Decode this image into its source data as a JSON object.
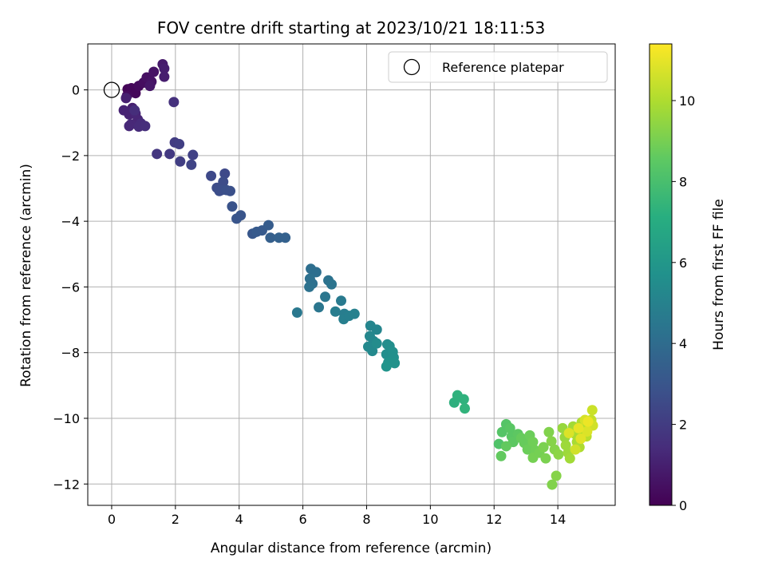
{
  "chart_data": {
    "type": "scatter",
    "title": "FOV centre drift starting at 2023/10/21 18:11:53",
    "xlabel": "Angular distance from reference (arcmin)",
    "ylabel": "Rotation from reference (arcmin)",
    "xlim": [
      -0.75,
      15.8
    ],
    "ylim": [
      -12.65,
      1.4
    ],
    "xticks": [
      0,
      2,
      4,
      6,
      8,
      10,
      12,
      14
    ],
    "xtick_labels": [
      "0",
      "2",
      "4",
      "6",
      "8",
      "10",
      "12",
      "14"
    ],
    "yticks": [
      0,
      -2,
      -4,
      -6,
      -8,
      -10,
      -12
    ],
    "ytick_labels": [
      "0",
      "−2",
      "−4",
      "−6",
      "−8",
      "−10",
      "−12"
    ],
    "grid": true,
    "legend": {
      "placement": "top-right",
      "entries": [
        {
          "label": "Reference platepar",
          "marker": "open-circle",
          "color": "#000000"
        }
      ]
    },
    "reference_point": {
      "x": 0,
      "y": 0
    },
    "colorbar": {
      "label": "Hours from first FF file",
      "colormap": "viridis",
      "range": [
        0,
        11.4
      ],
      "ticks": [
        0,
        2,
        4,
        6,
        8,
        10
      ],
      "tick_labels": [
        "0",
        "2",
        "4",
        "6",
        "8",
        "10"
      ]
    },
    "series": [
      {
        "values": [
          {
            "x": 0.5,
            "y": 0.02,
            "h": 0.1
          },
          {
            "x": 0.62,
            "y": 0.05,
            "h": 0.2
          },
          {
            "x": 0.75,
            "y": -0.1,
            "h": 0.2
          },
          {
            "x": 0.48,
            "y": -0.18,
            "h": 0.3
          },
          {
            "x": 0.85,
            "y": 0.12,
            "h": 0.3
          },
          {
            "x": 1.0,
            "y": 0.22,
            "h": 0.4
          },
          {
            "x": 1.1,
            "y": 0.38,
            "h": 0.5
          },
          {
            "x": 1.25,
            "y": 0.25,
            "h": 0.6
          },
          {
            "x": 1.32,
            "y": 0.55,
            "h": 0.6
          },
          {
            "x": 1.2,
            "y": 0.12,
            "h": 0.7
          },
          {
            "x": 1.6,
            "y": 0.78,
            "h": 0.8
          },
          {
            "x": 1.65,
            "y": 0.65,
            "h": 0.9
          },
          {
            "x": 1.65,
            "y": 0.4,
            "h": 0.9
          },
          {
            "x": 0.45,
            "y": -0.25,
            "h": 1.0
          },
          {
            "x": 0.65,
            "y": -0.55,
            "h": 1.0
          },
          {
            "x": 0.38,
            "y": -0.62,
            "h": 1.1
          },
          {
            "x": 0.55,
            "y": -0.75,
            "h": 1.1
          },
          {
            "x": 0.75,
            "y": -0.72,
            "h": 1.2
          },
          {
            "x": 0.82,
            "y": -0.9,
            "h": 1.2
          },
          {
            "x": 0.6,
            "y": -1.05,
            "h": 1.3
          },
          {
            "x": 0.55,
            "y": -1.1,
            "h": 1.3
          },
          {
            "x": 0.92,
            "y": -1.02,
            "h": 1.4
          },
          {
            "x": 0.85,
            "y": -1.12,
            "h": 1.4
          },
          {
            "x": 1.05,
            "y": -1.1,
            "h": 1.5
          },
          {
            "x": 0.72,
            "y": -0.62,
            "h": 1.5
          },
          {
            "x": 1.95,
            "y": -0.37,
            "h": 1.6
          },
          {
            "x": 1.42,
            "y": -1.95,
            "h": 1.8
          },
          {
            "x": 1.82,
            "y": -1.95,
            "h": 1.9
          },
          {
            "x": 1.98,
            "y": -1.6,
            "h": 2.0
          },
          {
            "x": 2.12,
            "y": -1.65,
            "h": 2.1
          },
          {
            "x": 2.15,
            "y": -2.18,
            "h": 2.1
          },
          {
            "x": 2.55,
            "y": -1.98,
            "h": 2.2
          },
          {
            "x": 2.5,
            "y": -2.28,
            "h": 2.3
          },
          {
            "x": 3.12,
            "y": -2.62,
            "h": 2.5
          },
          {
            "x": 3.55,
            "y": -2.55,
            "h": 2.5
          },
          {
            "x": 3.5,
            "y": -2.8,
            "h": 2.6
          },
          {
            "x": 3.3,
            "y": -2.98,
            "h": 2.6
          },
          {
            "x": 3.45,
            "y": -3.05,
            "h": 2.7
          },
          {
            "x": 3.38,
            "y": -3.08,
            "h": 2.7
          },
          {
            "x": 3.6,
            "y": -3.05,
            "h": 2.8
          },
          {
            "x": 3.72,
            "y": -3.08,
            "h": 2.8
          },
          {
            "x": 3.78,
            "y": -3.55,
            "h": 2.9
          },
          {
            "x": 3.92,
            "y": -3.92,
            "h": 3.0
          },
          {
            "x": 4.05,
            "y": -3.82,
            "h": 3.0
          },
          {
            "x": 4.42,
            "y": -4.38,
            "h": 3.1
          },
          {
            "x": 4.55,
            "y": -4.32,
            "h": 3.2
          },
          {
            "x": 4.72,
            "y": -4.28,
            "h": 3.2
          },
          {
            "x": 4.92,
            "y": -4.12,
            "h": 3.3
          },
          {
            "x": 4.98,
            "y": -4.5,
            "h": 3.4
          },
          {
            "x": 5.25,
            "y": -4.5,
            "h": 3.5
          },
          {
            "x": 5.45,
            "y": -4.5,
            "h": 3.5
          },
          {
            "x": 6.25,
            "y": -5.45,
            "h": 4.1
          },
          {
            "x": 6.42,
            "y": -5.55,
            "h": 4.1
          },
          {
            "x": 6.22,
            "y": -5.75,
            "h": 4.2
          },
          {
            "x": 6.3,
            "y": -5.9,
            "h": 4.2
          },
          {
            "x": 6.2,
            "y": -6.0,
            "h": 4.3
          },
          {
            "x": 6.8,
            "y": -5.8,
            "h": 4.3
          },
          {
            "x": 6.9,
            "y": -5.92,
            "h": 4.4
          },
          {
            "x": 6.7,
            "y": -6.3,
            "h": 4.5
          },
          {
            "x": 6.5,
            "y": -6.62,
            "h": 4.5
          },
          {
            "x": 5.82,
            "y": -6.78,
            "h": 4.6
          },
          {
            "x": 7.2,
            "y": -6.42,
            "h": 4.7
          },
          {
            "x": 7.02,
            "y": -6.75,
            "h": 4.8
          },
          {
            "x": 7.3,
            "y": -6.82,
            "h": 4.8
          },
          {
            "x": 7.28,
            "y": -6.98,
            "h": 4.9
          },
          {
            "x": 7.45,
            "y": -6.88,
            "h": 4.9
          },
          {
            "x": 7.62,
            "y": -6.82,
            "h": 5.0
          },
          {
            "x": 8.12,
            "y": -7.18,
            "h": 5.2
          },
          {
            "x": 8.32,
            "y": -7.3,
            "h": 5.2
          },
          {
            "x": 8.1,
            "y": -7.5,
            "h": 5.3
          },
          {
            "x": 8.22,
            "y": -7.65,
            "h": 5.3
          },
          {
            "x": 8.05,
            "y": -7.82,
            "h": 5.4
          },
          {
            "x": 8.18,
            "y": -7.95,
            "h": 5.4
          },
          {
            "x": 8.32,
            "y": -7.72,
            "h": 5.5
          },
          {
            "x": 8.65,
            "y": -7.75,
            "h": 5.5
          },
          {
            "x": 8.72,
            "y": -7.8,
            "h": 5.6
          },
          {
            "x": 8.62,
            "y": -8.05,
            "h": 5.6
          },
          {
            "x": 8.82,
            "y": -7.98,
            "h": 5.7
          },
          {
            "x": 8.85,
            "y": -8.15,
            "h": 5.7
          },
          {
            "x": 8.68,
            "y": -8.3,
            "h": 5.8
          },
          {
            "x": 8.88,
            "y": -8.32,
            "h": 5.8
          },
          {
            "x": 8.62,
            "y": -8.42,
            "h": 5.9
          },
          {
            "x": 10.75,
            "y": -9.52,
            "h": 7.2
          },
          {
            "x": 10.85,
            "y": -9.3,
            "h": 7.3
          },
          {
            "x": 11.05,
            "y": -9.42,
            "h": 7.3
          },
          {
            "x": 11.08,
            "y": -9.7,
            "h": 7.4
          },
          {
            "x": 12.15,
            "y": -10.78,
            "h": 8.2
          },
          {
            "x": 12.25,
            "y": -10.42,
            "h": 8.3
          },
          {
            "x": 12.38,
            "y": -10.18,
            "h": 8.3
          },
          {
            "x": 12.5,
            "y": -10.3,
            "h": 8.4
          },
          {
            "x": 12.55,
            "y": -10.55,
            "h": 8.4
          },
          {
            "x": 12.6,
            "y": -10.72,
            "h": 8.5
          },
          {
            "x": 12.75,
            "y": -10.48,
            "h": 8.5
          },
          {
            "x": 12.38,
            "y": -10.85,
            "h": 8.6
          },
          {
            "x": 12.22,
            "y": -11.15,
            "h": 8.6
          },
          {
            "x": 12.85,
            "y": -10.6,
            "h": 8.7
          },
          {
            "x": 12.95,
            "y": -10.75,
            "h": 8.7
          },
          {
            "x": 13.05,
            "y": -10.95,
            "h": 8.8
          },
          {
            "x": 13.12,
            "y": -10.52,
            "h": 8.8
          },
          {
            "x": 13.22,
            "y": -10.72,
            "h": 8.9
          },
          {
            "x": 13.3,
            "y": -10.98,
            "h": 8.9
          },
          {
            "x": 13.22,
            "y": -11.2,
            "h": 9.0
          },
          {
            "x": 13.42,
            "y": -11.05,
            "h": 9.0
          },
          {
            "x": 13.55,
            "y": -10.88,
            "h": 9.1
          },
          {
            "x": 13.62,
            "y": -11.22,
            "h": 9.1
          },
          {
            "x": 13.72,
            "y": -10.42,
            "h": 9.2
          },
          {
            "x": 13.8,
            "y": -10.7,
            "h": 9.3
          },
          {
            "x": 13.9,
            "y": -10.95,
            "h": 9.3
          },
          {
            "x": 14.02,
            "y": -11.1,
            "h": 9.4
          },
          {
            "x": 13.82,
            "y": -12.02,
            "h": 9.2
          },
          {
            "x": 13.95,
            "y": -11.75,
            "h": 9.3
          },
          {
            "x": 14.15,
            "y": -10.3,
            "h": 9.6
          },
          {
            "x": 14.22,
            "y": -10.58,
            "h": 9.6
          },
          {
            "x": 14.25,
            "y": -10.82,
            "h": 9.7
          },
          {
            "x": 14.32,
            "y": -11.05,
            "h": 9.7
          },
          {
            "x": 14.38,
            "y": -11.22,
            "h": 9.8
          },
          {
            "x": 14.48,
            "y": -10.25,
            "h": 9.8
          },
          {
            "x": 14.55,
            "y": -10.48,
            "h": 9.9
          },
          {
            "x": 14.6,
            "y": -10.72,
            "h": 9.9
          },
          {
            "x": 14.68,
            "y": -10.88,
            "h": 10.0
          },
          {
            "x": 14.75,
            "y": -10.12,
            "h": 10.0
          },
          {
            "x": 14.82,
            "y": -10.35,
            "h": 10.1
          },
          {
            "x": 14.9,
            "y": -10.55,
            "h": 10.2
          },
          {
            "x": 14.98,
            "y": -10.2,
            "h": 10.3
          },
          {
            "x": 15.05,
            "y": -10.05,
            "h": 10.4
          },
          {
            "x": 15.08,
            "y": -9.75,
            "h": 10.5
          },
          {
            "x": 15.1,
            "y": -10.22,
            "h": 10.6
          },
          {
            "x": 14.85,
            "y": -10.05,
            "h": 10.7
          },
          {
            "x": 14.92,
            "y": -10.4,
            "h": 10.8
          },
          {
            "x": 14.72,
            "y": -10.62,
            "h": 10.9
          },
          {
            "x": 14.65,
            "y": -10.3,
            "h": 11.0
          },
          {
            "x": 14.95,
            "y": -10.1,
            "h": 11.1
          },
          {
            "x": 14.55,
            "y": -10.95,
            "h": 10.6
          },
          {
            "x": 14.35,
            "y": -10.45,
            "h": 10.8
          }
        ]
      }
    ]
  }
}
